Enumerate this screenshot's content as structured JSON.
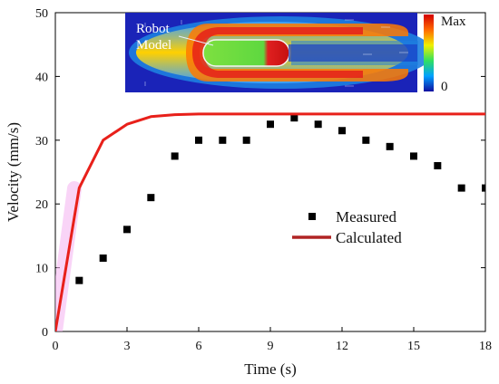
{
  "chart_data": {
    "type": "scatter",
    "xlabel": "Time (s)",
    "ylabel": "Velocity (mm/s)",
    "xlim": [
      0,
      18
    ],
    "ylim": [
      0,
      50
    ],
    "xticks": [
      0,
      3,
      6,
      9,
      12,
      15,
      18
    ],
    "yticks": [
      0,
      10,
      20,
      30,
      40,
      50
    ],
    "grid": false,
    "legend_position": "center-right",
    "series": [
      {
        "name": "Measured",
        "kind": "scatter",
        "marker": "square",
        "color": "#000000",
        "x": [
          1,
          2,
          3,
          4,
          5,
          6,
          7,
          8,
          9,
          10,
          11,
          12,
          13,
          14,
          15,
          16,
          17,
          18
        ],
        "y": [
          8,
          11.5,
          16,
          21,
          27.5,
          30,
          30,
          30,
          32.5,
          33.5,
          32.5,
          31.5,
          30,
          29,
          27.5,
          26,
          22.5,
          22.5
        ]
      },
      {
        "name": "Calculated",
        "kind": "line",
        "color": "#e8201a",
        "x": [
          0,
          1,
          2,
          3,
          4,
          5,
          6,
          8,
          10,
          12,
          14,
          16,
          18
        ],
        "y": [
          0,
          22.5,
          30,
          32.5,
          33.7,
          34,
          34.1,
          34.1,
          34.1,
          34.1,
          34.1,
          34.1,
          34.1
        ]
      }
    ],
    "inset": {
      "label_line1": "Robot",
      "label_line2": "Model",
      "colorbar_max": "Max",
      "colorbar_min": "0"
    }
  }
}
